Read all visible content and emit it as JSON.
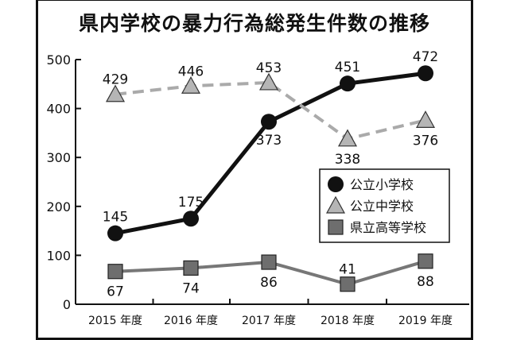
{
  "chart_data": {
    "type": "line",
    "title": "県内学校の暴力行為総発生件数の推移",
    "categories": [
      "2015 年度",
      "2016 年度",
      "2017 年度",
      "2018 年度",
      "2019 年度"
    ],
    "ylim": [
      0,
      500
    ],
    "yticks": [
      0,
      100,
      200,
      300,
      400,
      500
    ],
    "grid": false,
    "legend_position": "right-middle",
    "series": [
      {
        "name": "公立小学校",
        "values": [
          145,
          175,
          373,
          451,
          472
        ],
        "marker": "circle",
        "color": "#111111",
        "dash": false
      },
      {
        "name": "公立中学校",
        "values": [
          429,
          446,
          453,
          338,
          376
        ],
        "marker": "triangle",
        "color": "#aaaaaa",
        "dash": true
      },
      {
        "name": "県立高等学校",
        "values": [
          67,
          74,
          86,
          41,
          88
        ],
        "marker": "square",
        "color": "#777777",
        "dash": false
      }
    ]
  }
}
